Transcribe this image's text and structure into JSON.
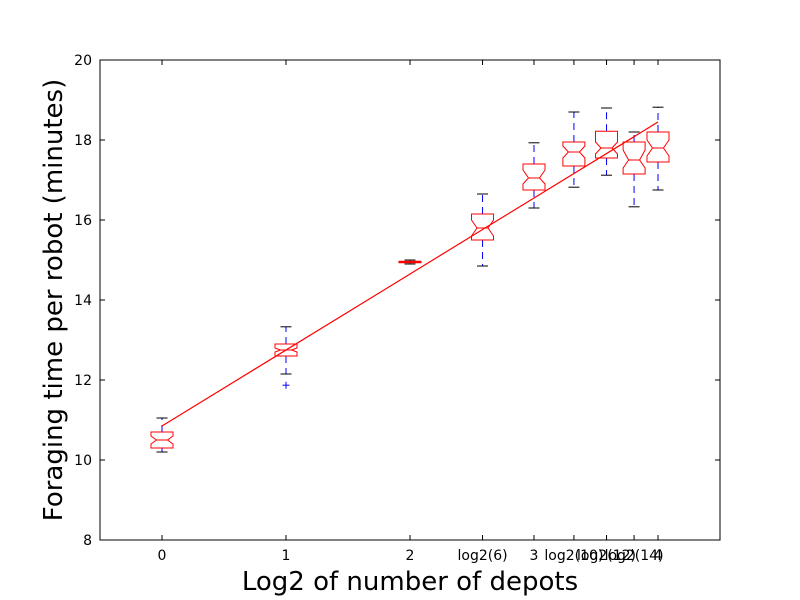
{
  "chart_data": {
    "type": "box",
    "title": "",
    "xlabel": "Log2 of number of depots",
    "ylabel": "Foraging time per robot (minutes)",
    "xlim": [
      -0.5,
      4.5
    ],
    "ylim": [
      8,
      20
    ],
    "grid": false,
    "legend": "none",
    "xticks": [
      {
        "value": 0,
        "label": "0"
      },
      {
        "value": 1,
        "label": "1"
      },
      {
        "value": 2,
        "label": "2"
      },
      {
        "value": 2.585,
        "label": "log2(6)"
      },
      {
        "value": 3,
        "label": "3"
      },
      {
        "value": 3.322,
        "label": "log2(10)"
      },
      {
        "value": 3.585,
        "label": "log2(12)"
      },
      {
        "value": 3.807,
        "label": "log2(14)"
      },
      {
        "value": 4,
        "label": "4"
      }
    ],
    "yticks": [
      8,
      10,
      12,
      14,
      16,
      18,
      20
    ],
    "boxes": [
      {
        "x": 0,
        "whisker_low": 10.2,
        "q1": 10.3,
        "median": 10.5,
        "q3": 10.7,
        "whisker_high": 11.05,
        "notch_low": 10.4,
        "notch_high": 10.6,
        "outliers": []
      },
      {
        "x": 1,
        "whisker_low": 12.15,
        "q1": 12.6,
        "median": 12.75,
        "q3": 12.9,
        "whisker_high": 13.33,
        "notch_low": 12.7,
        "notch_high": 12.8,
        "outliers": [
          11.87
        ]
      },
      {
        "x": 2,
        "whisker_low": 14.9,
        "q1": 14.93,
        "median": 14.95,
        "q3": 14.97,
        "whisker_high": 15.0,
        "notch_low": 14.94,
        "notch_high": 14.96,
        "outliers": []
      },
      {
        "x": 2.585,
        "whisker_low": 14.85,
        "q1": 15.5,
        "median": 15.8,
        "q3": 16.15,
        "whisker_high": 16.65,
        "notch_low": 15.6,
        "notch_high": 16.0,
        "outliers": []
      },
      {
        "x": 3,
        "whisker_low": 16.3,
        "q1": 16.75,
        "median": 17.05,
        "q3": 17.4,
        "whisker_high": 17.93,
        "notch_low": 16.9,
        "notch_high": 17.25,
        "outliers": []
      },
      {
        "x": 3.322,
        "whisker_low": 16.82,
        "q1": 17.35,
        "median": 17.7,
        "q3": 17.95,
        "whisker_high": 18.7,
        "notch_low": 17.55,
        "notch_high": 17.85,
        "outliers": []
      },
      {
        "x": 3.585,
        "whisker_low": 17.12,
        "q1": 17.55,
        "median": 17.8,
        "q3": 18.22,
        "whisker_high": 18.8,
        "notch_low": 17.65,
        "notch_high": 17.95,
        "outliers": []
      },
      {
        "x": 3.807,
        "whisker_low": 16.33,
        "q1": 17.15,
        "median": 17.5,
        "q3": 17.95,
        "whisker_high": 18.2,
        "notch_low": 17.3,
        "notch_high": 17.75,
        "outliers": []
      },
      {
        "x": 4,
        "whisker_low": 16.75,
        "q1": 17.45,
        "median": 17.8,
        "q3": 18.2,
        "whisker_high": 18.82,
        "notch_low": 17.6,
        "notch_high": 18.0,
        "outliers": []
      }
    ],
    "fit_line": {
      "x": [
        0,
        4
      ],
      "y": [
        10.85,
        18.45
      ]
    },
    "colors": {
      "box": "#ff0000",
      "whisker": "#0000ff",
      "fit": "#ff0000",
      "outlier": "#0000ff",
      "axes": "#000000"
    }
  }
}
